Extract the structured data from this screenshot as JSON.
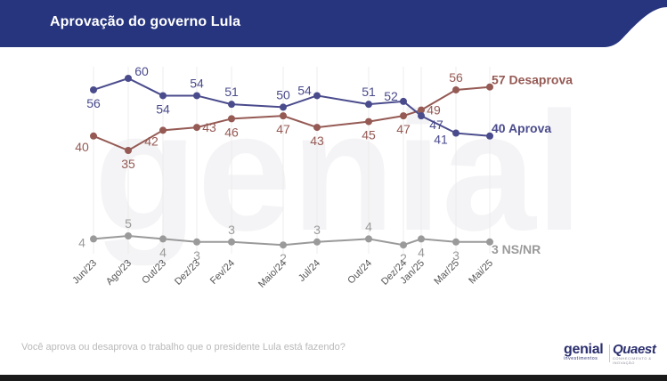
{
  "header": {
    "title": "Aprovação do governo Lula",
    "bg_color": "#27357e",
    "accent_color": "#ffffff"
  },
  "footer": {
    "question": "Você aprova ou desaprova o trabalho que o presidente Lula está fazendo?",
    "logo_genial": "genial",
    "logo_genial_sub": "investimentos",
    "logo_quaest": "Quaest",
    "logo_quaest_sub": "CONHECIMENTO & INOVAÇÃO"
  },
  "chart_data": {
    "type": "line",
    "title": "",
    "xlabel": "",
    "ylabel": "",
    "grid": false,
    "legend": "end-labels",
    "x_ticks": [
      "Jun/23",
      "Ago/23",
      "Out/23",
      "Dez/23",
      "Fev/24",
      "Maio/24",
      "Jul/24",
      "Out/24",
      "Dez/24",
      "Jan/25",
      "Mar/25",
      "Mai/25"
    ],
    "series": [
      {
        "name": "Desaprova",
        "color": "#955a54",
        "end_label": "57 Desaprova",
        "values": [
          40,
          35,
          42,
          43,
          46,
          47,
          43,
          45,
          47,
          49,
          56,
          57
        ],
        "value_labels": [
          "40",
          "35",
          "42",
          "43",
          "46",
          "47",
          "43",
          "45",
          "47",
          "49",
          "56",
          ""
        ]
      },
      {
        "name": "Aprova",
        "color": "#4a4b8c",
        "end_label": "40 Aprova",
        "values": [
          56,
          60,
          54,
          54,
          51,
          50,
          54,
          51,
          52,
          47,
          41,
          40
        ],
        "value_labels": [
          "56",
          "60",
          "54",
          "54",
          "51",
          "50",
          "54",
          "51",
          "52",
          "47",
          "41",
          ""
        ]
      },
      {
        "name": "NS/NR",
        "color": "#9a9a9a",
        "end_label": "3 NS/NR",
        "values": [
          4,
          5,
          4,
          3,
          3,
          2,
          3,
          4,
          2,
          4,
          3,
          3
        ],
        "value_labels": [
          "4",
          "5",
          "4",
          "3",
          "3",
          "2",
          "3",
          "4",
          "2",
          "4",
          "3",
          ""
        ]
      }
    ]
  }
}
